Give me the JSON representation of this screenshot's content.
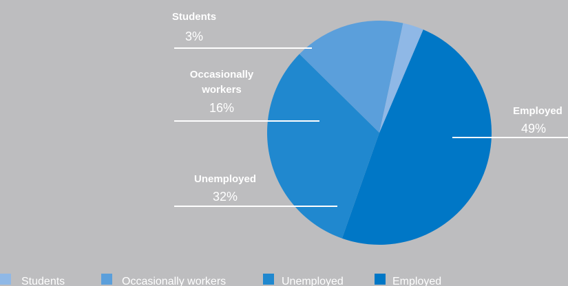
{
  "chart_data": {
    "type": "pie",
    "slices": [
      {
        "name": "Students",
        "value": 3,
        "label": "3%",
        "color": "#8fb8e6"
      },
      {
        "name": "Occasionally workers",
        "value": 16,
        "label": "16%",
        "color": "#5b9fdb"
      },
      {
        "name": "Unemployed",
        "value": 32,
        "label": "32%",
        "color": "#2088cf"
      },
      {
        "name": "Employed",
        "value": 49,
        "label": "49%",
        "color": "#0077c6"
      }
    ],
    "legend": {
      "position": "bottom-left",
      "entries": [
        "Students",
        "Occasionally workers",
        "Unemployed",
        "Employed"
      ]
    },
    "grid": false
  }
}
